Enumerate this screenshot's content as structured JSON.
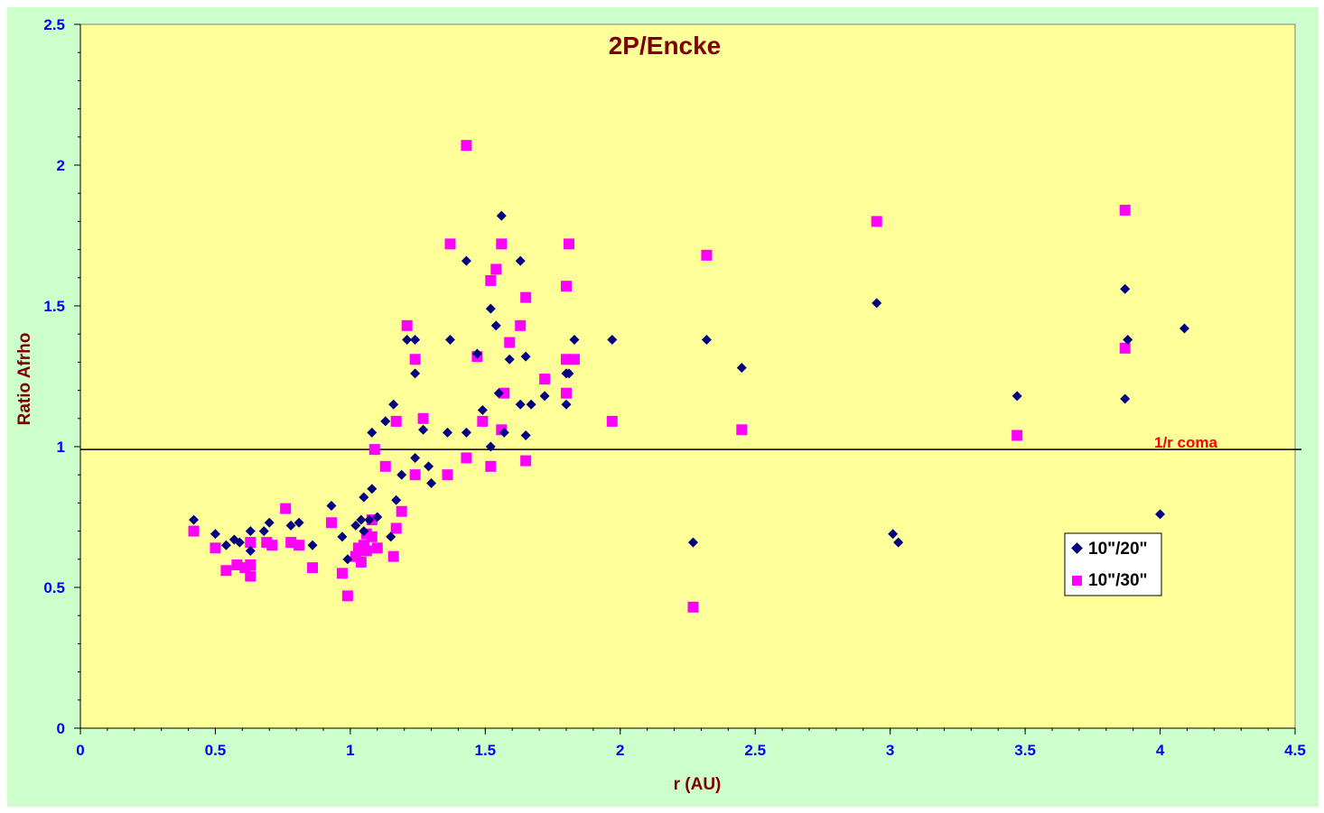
{
  "colors": {
    "outer_background": "#ccffcc",
    "plot_background": "#ffff99",
    "title": "#800000",
    "axis_title": "#800000",
    "tick_label": "#0000ff",
    "reference_label": "#ff0000",
    "series_10_20": "#000080",
    "series_10_30": "#ff00ff",
    "reference_line": "#000000"
  },
  "chart_data": {
    "type": "scatter",
    "title": "2P/Encke",
    "xlabel": "r (AU)",
    "ylabel": "Ratio Afrho",
    "xlim": [
      0,
      4.5
    ],
    "ylim": [
      0,
      2.5
    ],
    "xticks": [
      "0",
      "0.5",
      "1",
      "1.5",
      "2",
      "2.5",
      "3",
      "3.5",
      "4",
      "4.5"
    ],
    "yticks": [
      "0",
      "0.5",
      "1",
      "1.5",
      "2",
      "2.5"
    ],
    "grid": false,
    "legend_placement": "lower-right",
    "reference_line": {
      "y": 0.99,
      "label": "1/r coma"
    },
    "series": [
      {
        "name": "10\"/20\"",
        "marker": "diamond",
        "points": [
          [
            0.42,
            0.74
          ],
          [
            0.5,
            0.69
          ],
          [
            0.54,
            0.65
          ],
          [
            0.57,
            0.67
          ],
          [
            0.59,
            0.66
          ],
          [
            0.63,
            0.7
          ],
          [
            0.63,
            0.63
          ],
          [
            0.68,
            0.7
          ],
          [
            0.7,
            0.73
          ],
          [
            0.78,
            0.72
          ],
          [
            0.81,
            0.73
          ],
          [
            0.86,
            0.65
          ],
          [
            0.93,
            0.79
          ],
          [
            0.97,
            0.68
          ],
          [
            0.99,
            0.6
          ],
          [
            1.02,
            0.72
          ],
          [
            1.04,
            0.74
          ],
          [
            1.05,
            0.7
          ],
          [
            1.05,
            0.82
          ],
          [
            1.07,
            0.74
          ],
          [
            1.08,
            0.85
          ],
          [
            1.08,
            1.05
          ],
          [
            1.1,
            0.75
          ],
          [
            1.13,
            1.09
          ],
          [
            1.15,
            0.68
          ],
          [
            1.16,
            1.15
          ],
          [
            1.17,
            0.81
          ],
          [
            1.19,
            0.9
          ],
          [
            1.21,
            1.38
          ],
          [
            1.24,
            1.38
          ],
          [
            1.24,
            1.26
          ],
          [
            1.24,
            0.96
          ],
          [
            1.27,
            1.06
          ],
          [
            1.29,
            0.93
          ],
          [
            1.3,
            0.87
          ],
          [
            1.36,
            1.05
          ],
          [
            1.37,
            1.38
          ],
          [
            1.43,
            1.66
          ],
          [
            1.43,
            1.05
          ],
          [
            1.47,
            1.33
          ],
          [
            1.49,
            1.13
          ],
          [
            1.52,
            1.49
          ],
          [
            1.52,
            1.0
          ],
          [
            1.54,
            1.43
          ],
          [
            1.55,
            1.19
          ],
          [
            1.56,
            1.82
          ],
          [
            1.57,
            1.05
          ],
          [
            1.59,
            1.31
          ],
          [
            1.63,
            1.66
          ],
          [
            1.63,
            1.15
          ],
          [
            1.65,
            1.32
          ],
          [
            1.65,
            1.04
          ],
          [
            1.67,
            1.15
          ],
          [
            1.72,
            1.18
          ],
          [
            1.8,
            1.26
          ],
          [
            1.8,
            1.15
          ],
          [
            1.81,
            1.26
          ],
          [
            1.83,
            1.38
          ],
          [
            1.97,
            1.38
          ],
          [
            2.27,
            0.66
          ],
          [
            2.32,
            1.38
          ],
          [
            2.45,
            1.28
          ],
          [
            2.95,
            1.51
          ],
          [
            3.01,
            0.69
          ],
          [
            3.03,
            0.66
          ],
          [
            3.47,
            1.18
          ],
          [
            3.87,
            1.17
          ],
          [
            3.87,
            1.56
          ],
          [
            3.88,
            1.38
          ],
          [
            4.0,
            0.76
          ],
          [
            4.09,
            1.42
          ]
        ]
      },
      {
        "name": "10\"/30\"",
        "marker": "square",
        "points": [
          [
            0.42,
            0.7
          ],
          [
            0.5,
            0.64
          ],
          [
            0.54,
            0.56
          ],
          [
            0.58,
            0.58
          ],
          [
            0.61,
            0.57
          ],
          [
            0.63,
            0.66
          ],
          [
            0.63,
            0.58
          ],
          [
            0.63,
            0.54
          ],
          [
            0.69,
            0.66
          ],
          [
            0.71,
            0.65
          ],
          [
            0.76,
            0.78
          ],
          [
            0.78,
            0.66
          ],
          [
            0.81,
            0.65
          ],
          [
            0.86,
            0.57
          ],
          [
            0.93,
            0.73
          ],
          [
            0.97,
            0.55
          ],
          [
            0.99,
            0.47
          ],
          [
            1.02,
            0.61
          ],
          [
            1.03,
            0.64
          ],
          [
            1.04,
            0.59
          ],
          [
            1.05,
            0.65
          ],
          [
            1.06,
            0.69
          ],
          [
            1.06,
            0.63
          ],
          [
            1.08,
            0.68
          ],
          [
            1.08,
            0.74
          ],
          [
            1.09,
            0.99
          ],
          [
            1.1,
            0.64
          ],
          [
            1.13,
            0.93
          ],
          [
            1.16,
            0.61
          ],
          [
            1.17,
            1.09
          ],
          [
            1.17,
            0.71
          ],
          [
            1.19,
            0.77
          ],
          [
            1.21,
            1.43
          ],
          [
            1.24,
            1.31
          ],
          [
            1.24,
            0.9
          ],
          [
            1.27,
            1.1
          ],
          [
            1.36,
            0.9
          ],
          [
            1.37,
            1.72
          ],
          [
            1.43,
            2.07
          ],
          [
            1.43,
            0.96
          ],
          [
            1.47,
            1.32
          ],
          [
            1.49,
            1.09
          ],
          [
            1.52,
            1.59
          ],
          [
            1.52,
            0.93
          ],
          [
            1.54,
            1.63
          ],
          [
            1.56,
            1.72
          ],
          [
            1.56,
            1.06
          ],
          [
            1.57,
            1.19
          ],
          [
            1.59,
            1.37
          ],
          [
            1.63,
            1.43
          ],
          [
            1.65,
            1.53
          ],
          [
            1.65,
            0.95
          ],
          [
            1.72,
            1.24
          ],
          [
            1.8,
            1.57
          ],
          [
            1.8,
            1.19
          ],
          [
            1.8,
            1.31
          ],
          [
            1.81,
            1.72
          ],
          [
            1.83,
            1.31
          ],
          [
            1.97,
            1.09
          ],
          [
            2.27,
            0.43
          ],
          [
            2.32,
            1.68
          ],
          [
            2.45,
            1.06
          ],
          [
            2.95,
            1.8
          ],
          [
            3.47,
            1.04
          ],
          [
            3.87,
            1.84
          ],
          [
            3.87,
            1.35
          ]
        ]
      }
    ]
  }
}
